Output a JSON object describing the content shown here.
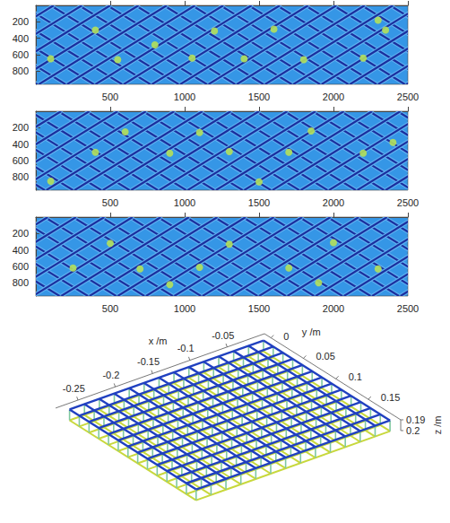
{
  "chart_data": [
    {
      "type": "image",
      "xlim": [
        0,
        2500
      ],
      "ylim": [
        0,
        960
      ],
      "xticks": [
        500,
        1000,
        1500,
        2000,
        2500
      ],
      "yticks": [
        200,
        400,
        600,
        800
      ],
      "color": "#1b2f9e",
      "net_lines": [
        [
          -850,
          10
        ],
        [
          -660,
          200
        ],
        [
          -470,
          390
        ],
        [
          -280,
          580
        ],
        [
          -90,
          770
        ],
        [
          100,
          960
        ],
        [
          290,
          1150
        ],
        [
          480,
          1340
        ],
        [
          670,
          1530
        ],
        [
          860,
          1720
        ],
        [
          1050,
          1910
        ],
        [
          1240,
          2100
        ],
        [
          1430,
          2290
        ],
        [
          1620,
          2480
        ],
        [
          1810,
          2670
        ],
        [
          2000,
          2860
        ],
        [
          2190,
          3050
        ],
        [
          2380,
          3240
        ],
        [
          120,
          -740
        ],
        [
          310,
          -550
        ],
        [
          500,
          -360
        ],
        [
          690,
          -170
        ],
        [
          880,
          20
        ],
        [
          1070,
          210
        ],
        [
          1260,
          400
        ],
        [
          1450,
          590
        ],
        [
          1640,
          780
        ],
        [
          1830,
          970
        ],
        [
          2020,
          1160
        ],
        [
          2210,
          1350
        ],
        [
          2400,
          1540
        ],
        [
          2590,
          1730
        ],
        [
          2780,
          1920
        ],
        [
          2970,
          2110
        ],
        [
          3160,
          2300
        ],
        [
          3350,
          2490
        ]
      ],
      "bright_spots": [
        [
          100,
          650
        ],
        [
          550,
          660
        ],
        [
          1050,
          640
        ],
        [
          1400,
          650
        ],
        [
          1800,
          660
        ],
        [
          2200,
          640
        ],
        [
          400,
          300
        ],
        [
          1200,
          310
        ],
        [
          1600,
          290
        ],
        [
          2350,
          300
        ],
        [
          2300,
          180
        ],
        [
          800,
          480
        ]
      ]
    },
    {
      "type": "image",
      "xlim": [
        0,
        2500
      ],
      "ylim": [
        0,
        960
      ],
      "xticks": [
        500,
        1000,
        1500,
        2000,
        2500
      ],
      "yticks": [
        200,
        400,
        600,
        800
      ],
      "color": "#1b2f9e",
      "net_lines": [
        [
          -800,
          60
        ],
        [
          -610,
          250
        ],
        [
          -420,
          440
        ],
        [
          -230,
          630
        ],
        [
          -40,
          820
        ],
        [
          150,
          1010
        ],
        [
          340,
          1200
        ],
        [
          530,
          1390
        ],
        [
          720,
          1580
        ],
        [
          910,
          1770
        ],
        [
          1100,
          1960
        ],
        [
          1290,
          2150
        ],
        [
          1480,
          2340
        ],
        [
          1670,
          2530
        ],
        [
          1860,
          2720
        ],
        [
          2050,
          2910
        ],
        [
          2240,
          3100
        ],
        [
          2430,
          3290
        ],
        [
          170,
          -690
        ],
        [
          360,
          -500
        ],
        [
          550,
          -310
        ],
        [
          740,
          -120
        ],
        [
          930,
          70
        ],
        [
          1120,
          260
        ],
        [
          1310,
          450
        ],
        [
          1500,
          640
        ],
        [
          1690,
          830
        ],
        [
          1880,
          1020
        ],
        [
          2070,
          1210
        ],
        [
          2260,
          1400
        ],
        [
          2450,
          1590
        ],
        [
          2640,
          1780
        ],
        [
          2830,
          1970
        ],
        [
          3020,
          2160
        ],
        [
          3210,
          2350
        ],
        [
          3400,
          2540
        ]
      ],
      "bright_spots": [
        [
          400,
          500
        ],
        [
          900,
          510
        ],
        [
          1300,
          490
        ],
        [
          1700,
          500
        ],
        [
          2200,
          510
        ],
        [
          600,
          250
        ],
        [
          1100,
          260
        ],
        [
          1850,
          240
        ],
        [
          100,
          850
        ],
        [
          1500,
          860
        ],
        [
          2400,
          380
        ]
      ]
    },
    {
      "type": "image",
      "xlim": [
        0,
        2500
      ],
      "ylim": [
        0,
        960
      ],
      "xticks": [
        500,
        1000,
        1500,
        2000,
        2500
      ],
      "yticks": [
        200,
        400,
        600,
        800
      ],
      "color": "#1b2f9e",
      "net_lines": [
        [
          -890,
          -30
        ],
        [
          -700,
          160
        ],
        [
          -510,
          350
        ],
        [
          -320,
          540
        ],
        [
          -130,
          730
        ],
        [
          60,
          920
        ],
        [
          250,
          1110
        ],
        [
          440,
          1300
        ],
        [
          630,
          1490
        ],
        [
          820,
          1680
        ],
        [
          1010,
          1870
        ],
        [
          1200,
          2060
        ],
        [
          1390,
          2250
        ],
        [
          1580,
          2440
        ],
        [
          1770,
          2630
        ],
        [
          1960,
          2820
        ],
        [
          2150,
          3010
        ],
        [
          2340,
          3200
        ],
        [
          80,
          -780
        ],
        [
          270,
          -590
        ],
        [
          460,
          -400
        ],
        [
          650,
          -210
        ],
        [
          840,
          -20
        ],
        [
          1030,
          170
        ],
        [
          1220,
          360
        ],
        [
          1410,
          550
        ],
        [
          1600,
          740
        ],
        [
          1790,
          930
        ],
        [
          1980,
          1120
        ],
        [
          2170,
          1310
        ],
        [
          2360,
          1500
        ],
        [
          2550,
          1690
        ],
        [
          2740,
          1880
        ],
        [
          2930,
          2070
        ],
        [
          3120,
          2260
        ],
        [
          3310,
          2450
        ]
      ],
      "bright_spots": [
        [
          250,
          620
        ],
        [
          700,
          630
        ],
        [
          1100,
          610
        ],
        [
          1700,
          620
        ],
        [
          2300,
          630
        ],
        [
          500,
          320
        ],
        [
          1300,
          330
        ],
        [
          2000,
          310
        ],
        [
          900,
          820
        ],
        [
          1900,
          800
        ]
      ]
    },
    {
      "type": "scatter3d",
      "xlabel": "x /m",
      "ylabel": "y /m",
      "zlabel": "z /m",
      "xlim": [
        -0.28,
        0
      ],
      "ylim": [
        -0.01,
        0.2
      ],
      "zlim": [
        0.19,
        0.2
      ],
      "xticks": [
        -0.25,
        -0.2,
        -0.15,
        -0.1,
        -0.05
      ],
      "yticks": [
        0,
        0.05,
        0.1,
        0.15
      ],
      "zticks": [
        0.19,
        0.2
      ],
      "colors": [
        "#2040c0",
        "#c8d83c"
      ],
      "net_x": [
        -0.27,
        -0.25,
        -0.23,
        -0.21,
        -0.19,
        -0.17,
        -0.15,
        -0.13,
        -0.11,
        -0.09,
        -0.07,
        -0.05,
        -0.03,
        -0.01
      ],
      "net_y": [
        0,
        0.015,
        0.03,
        0.045,
        0.06,
        0.075,
        0.09,
        0.105,
        0.12,
        0.135,
        0.15,
        0.165,
        0.18,
        0.195
      ],
      "net_z": 0.19,
      "bottom_z": 0.2
    }
  ]
}
